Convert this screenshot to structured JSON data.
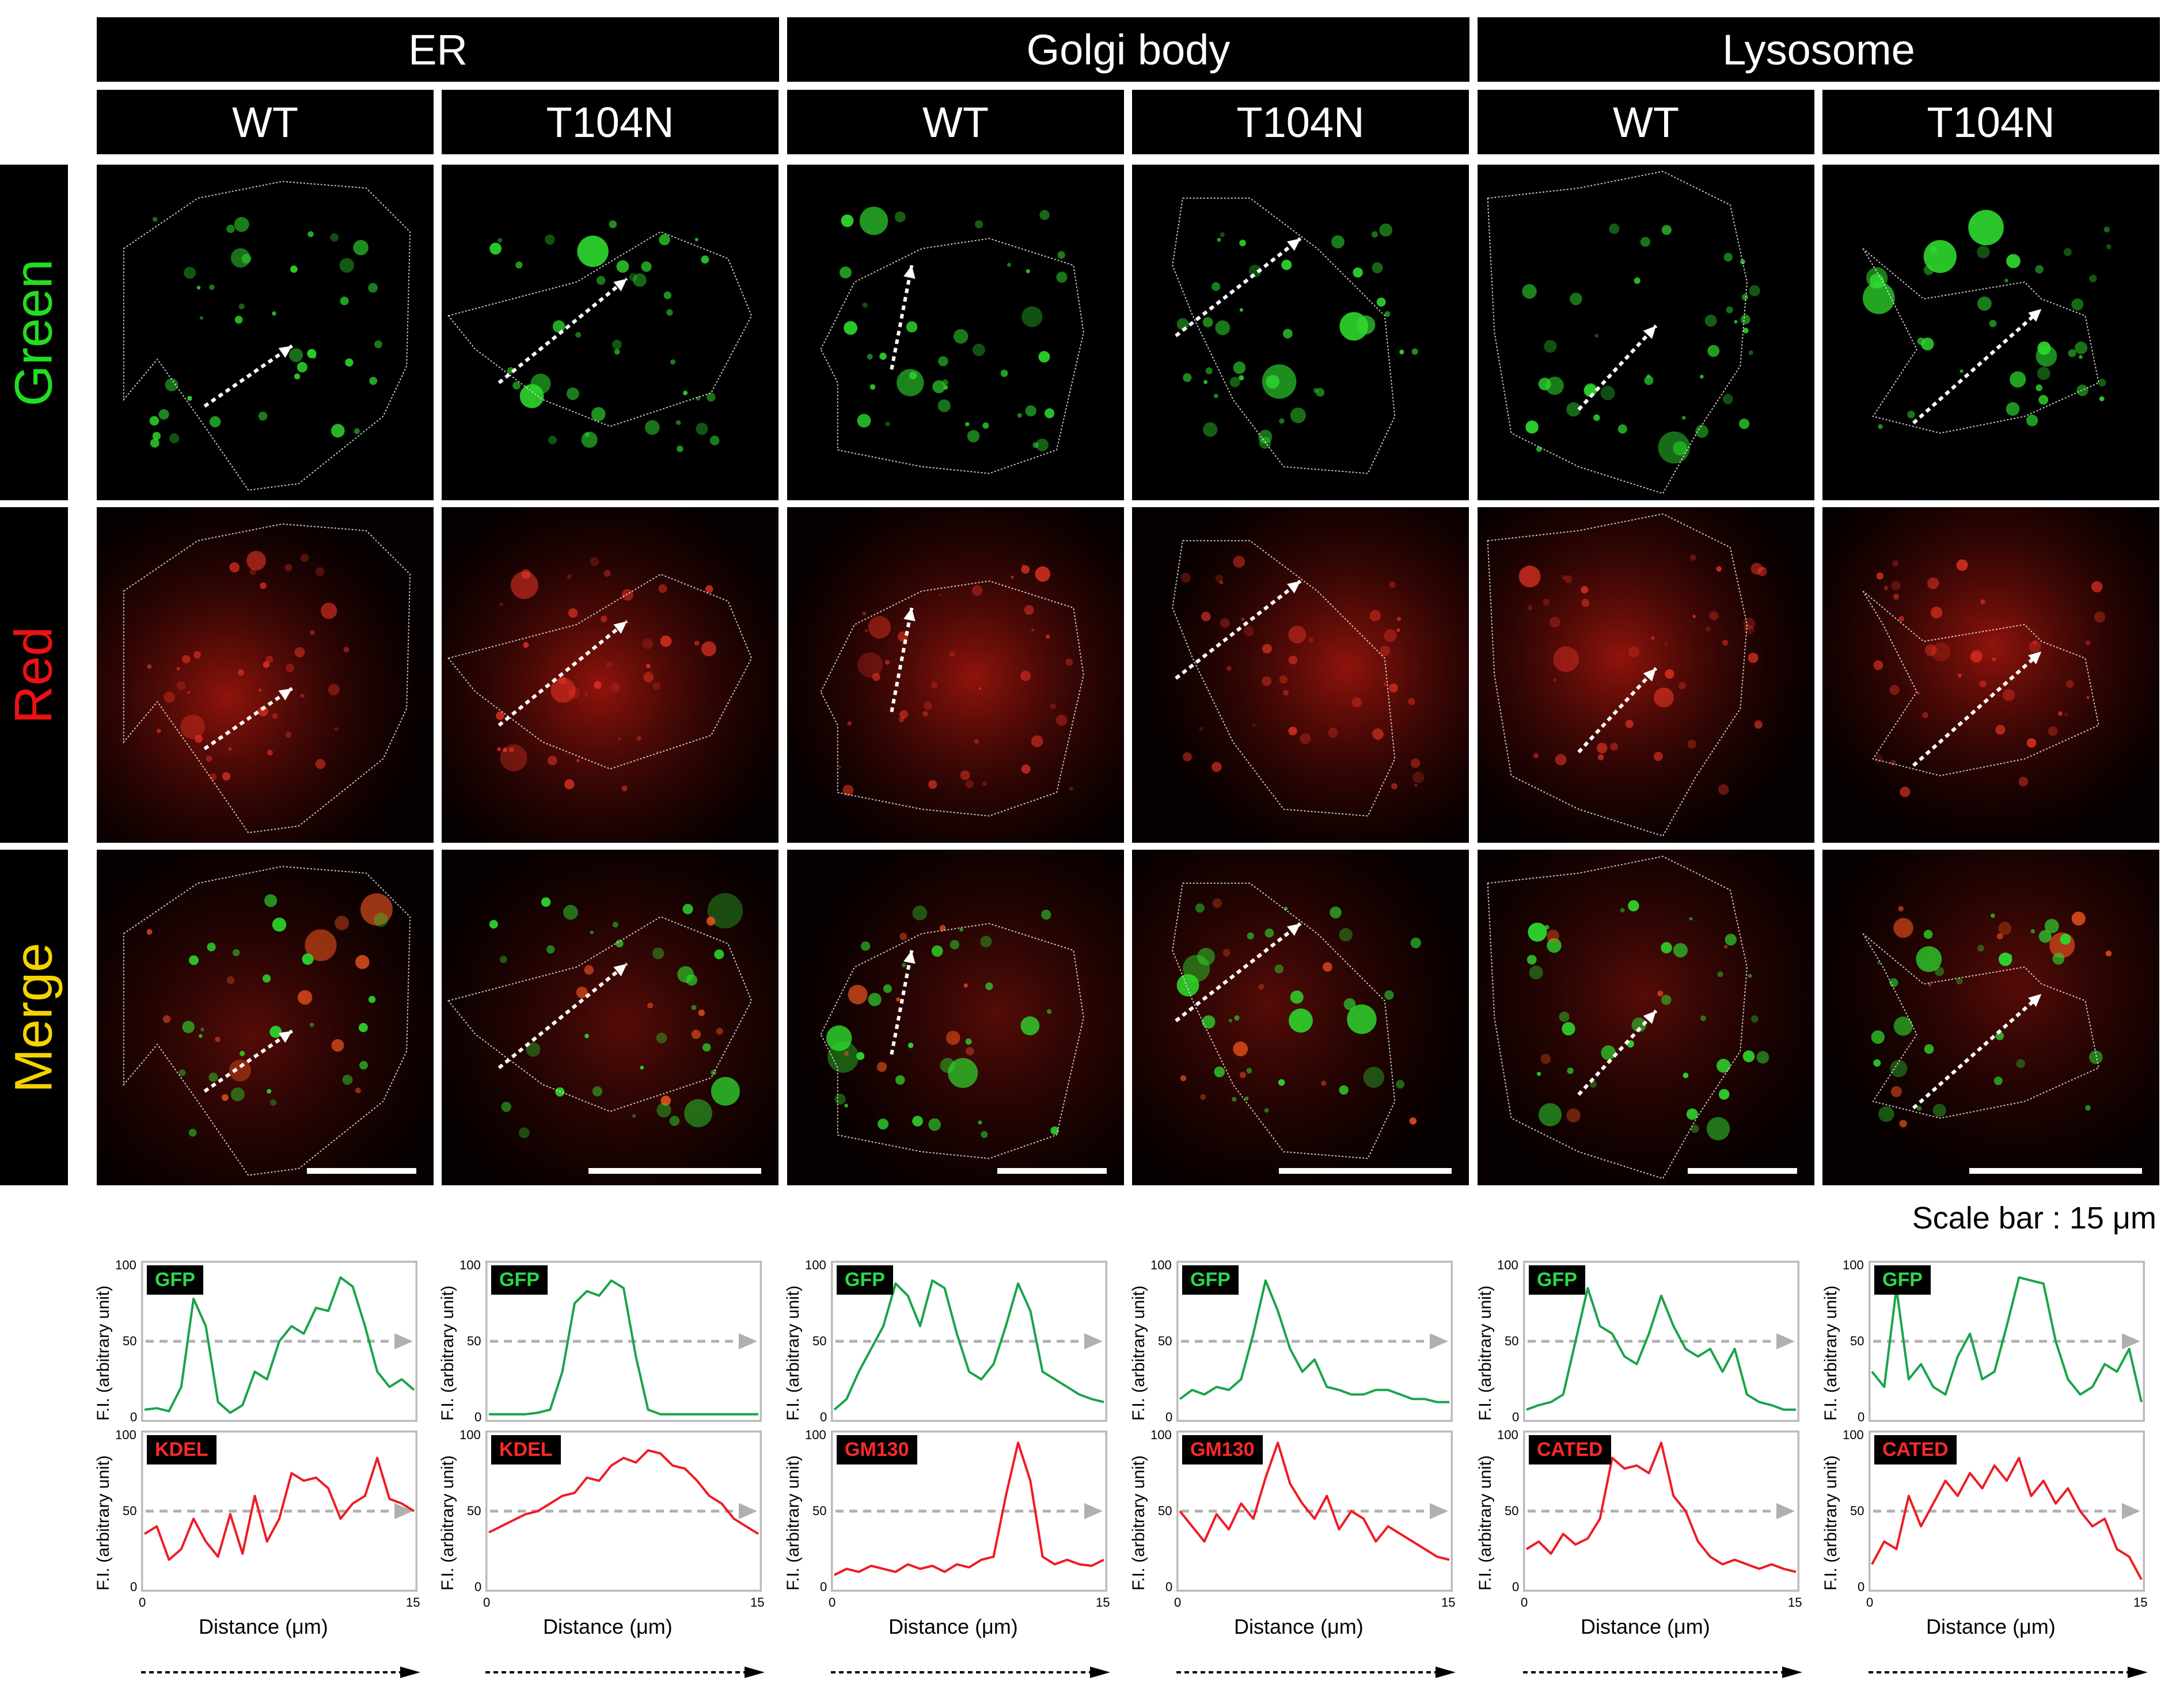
{
  "groups": [
    {
      "name": "ER"
    },
    {
      "name": "Golgi body"
    },
    {
      "name": "Lysosome"
    }
  ],
  "columns": [
    "WT",
    "T104N",
    "WT",
    "T104N",
    "WT",
    "T104N"
  ],
  "rows": [
    {
      "label": "Green",
      "color": "#22dd22"
    },
    {
      "label": "Red",
      "color": "#ee1111"
    },
    {
      "label": "Merge",
      "color": "#f4d400"
    }
  ],
  "scale_bar": "Scale bar : 15 μm",
  "plots": {
    "y_label": "F.I. (arbitrary unit)",
    "x_label": "Distance (μm)",
    "y_ticks": [
      "100",
      "50",
      "0"
    ],
    "x_ticks": [
      "0",
      "15"
    ],
    "green_tags": [
      "GFP",
      "GFP",
      "GFP",
      "GFP",
      "GFP",
      "GFP"
    ],
    "red_tags": [
      "KDEL",
      "KDEL",
      "GM130",
      "GM130",
      "CATED",
      "CATED"
    ]
  },
  "colors": {
    "green_trace": "#1aa34a",
    "red_trace": "#ee1c24",
    "dashed": "#b0b0b0",
    "frame": "#bbbbbb"
  },
  "chart_data": [
    {
      "type": "line",
      "panel": "ER WT",
      "series": [
        {
          "name": "GFP",
          "values": [
            5,
            6,
            4,
            20,
            78,
            60,
            10,
            3,
            8,
            30,
            25,
            50,
            60,
            55,
            72,
            70,
            92,
            86,
            60,
            30,
            20,
            25,
            18
          ]
        },
        {
          "name": "KDEL",
          "values": [
            35,
            40,
            18,
            25,
            45,
            30,
            20,
            48,
            22,
            60,
            30,
            45,
            75,
            70,
            72,
            65,
            45,
            55,
            60,
            85,
            58,
            55,
            50
          ]
        }
      ]
    },
    {
      "type": "line",
      "panel": "ER T104N",
      "series": [
        {
          "name": "GFP",
          "values": [
            2,
            2,
            2,
            2,
            3,
            5,
            30,
            75,
            83,
            80,
            90,
            85,
            40,
            5,
            2,
            2,
            2,
            2,
            2,
            2,
            2,
            2,
            2
          ]
        },
        {
          "name": "KDEL",
          "values": [
            36,
            40,
            44,
            48,
            50,
            55,
            60,
            62,
            72,
            70,
            80,
            85,
            82,
            90,
            88,
            80,
            78,
            70,
            60,
            55,
            45,
            40,
            35
          ]
        }
      ]
    },
    {
      "type": "line",
      "panel": "Golgi WT",
      "series": [
        {
          "name": "GFP",
          "values": [
            5,
            12,
            30,
            45,
            60,
            88,
            80,
            60,
            90,
            85,
            55,
            30,
            25,
            35,
            60,
            88,
            70,
            30,
            25,
            20,
            15,
            12,
            10
          ]
        },
        {
          "name": "GM130",
          "values": [
            8,
            12,
            10,
            14,
            12,
            10,
            15,
            12,
            14,
            10,
            15,
            13,
            18,
            20,
            60,
            95,
            70,
            20,
            15,
            18,
            15,
            14,
            18
          ]
        }
      ]
    },
    {
      "type": "line",
      "panel": "Golgi T104N",
      "series": [
        {
          "name": "GFP",
          "values": [
            12,
            18,
            15,
            20,
            18,
            25,
            55,
            90,
            70,
            45,
            30,
            38,
            20,
            18,
            15,
            15,
            18,
            18,
            15,
            12,
            12,
            10,
            10
          ]
        },
        {
          "name": "GM130",
          "values": [
            50,
            40,
            30,
            48,
            38,
            55,
            45,
            72,
            95,
            68,
            55,
            45,
            60,
            38,
            50,
            45,
            30,
            40,
            35,
            30,
            25,
            20,
            18
          ]
        }
      ]
    },
    {
      "type": "line",
      "panel": "Lysosome WT",
      "series": [
        {
          "name": "GFP",
          "values": [
            5,
            8,
            10,
            15,
            50,
            85,
            60,
            55,
            40,
            35,
            55,
            80,
            60,
            45,
            40,
            45,
            30,
            45,
            15,
            10,
            8,
            5,
            5
          ]
        },
        {
          "name": "CATED",
          "values": [
            25,
            30,
            22,
            35,
            28,
            32,
            45,
            85,
            78,
            80,
            75,
            95,
            60,
            50,
            30,
            20,
            15,
            18,
            15,
            12,
            15,
            12,
            10
          ]
        }
      ]
    },
    {
      "type": "line",
      "panel": "Lysosome T104N",
      "series": [
        {
          "name": "GFP",
          "values": [
            30,
            20,
            85,
            25,
            35,
            20,
            15,
            40,
            55,
            25,
            30,
            60,
            92,
            90,
            88,
            50,
            25,
            15,
            20,
            35,
            30,
            45,
            10
          ]
        },
        {
          "name": "CATED",
          "values": [
            15,
            30,
            25,
            60,
            40,
            55,
            70,
            60,
            75,
            65,
            80,
            70,
            85,
            60,
            70,
            55,
            65,
            50,
            40,
            45,
            25,
            20,
            5
          ]
        }
      ]
    }
  ]
}
